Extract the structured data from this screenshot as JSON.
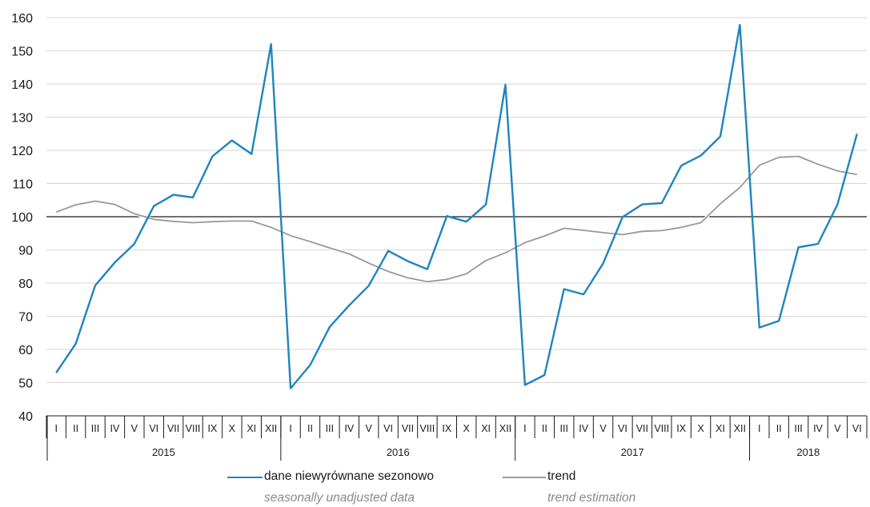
{
  "colors": {
    "unadjusted": "#1f84c0",
    "trend": "#999999",
    "grid": "#d6d6d6",
    "axis": "#1a1a1a"
  },
  "legend": {
    "unadjusted_label": "dane niewyrównane sezonowo",
    "unadjusted_sublabel": "seasonally unadjusted data",
    "trend_label": "trend",
    "trend_sublabel": "trend estimation"
  },
  "chart_data": {
    "type": "line",
    "title": "",
    "xlabel": "",
    "ylabel": "",
    "ylim": [
      40,
      160
    ],
    "yticks": [
      40,
      50,
      60,
      70,
      80,
      90,
      100,
      110,
      120,
      130,
      140,
      150,
      160
    ],
    "baseline": 100,
    "grid": true,
    "legend_position": "bottom",
    "categories": [
      "I",
      "II",
      "III",
      "IV",
      "V",
      "VI",
      "VII",
      "VIII",
      "IX",
      "X",
      "XI",
      "XII",
      "I",
      "II",
      "III",
      "IV",
      "V",
      "VI",
      "VII",
      "VIII",
      "IX",
      "X",
      "XI",
      "XII",
      "I",
      "II",
      "III",
      "IV",
      "V",
      "VI",
      "VII",
      "VIII",
      "IX",
      "X",
      "XI",
      "XII",
      "I",
      "II",
      "III",
      "IV",
      "V",
      "VI"
    ],
    "years": [
      {
        "label": "2015",
        "months": 12
      },
      {
        "label": "2016",
        "months": 12
      },
      {
        "label": "2017",
        "months": 12
      },
      {
        "label": "2018",
        "months": 6
      }
    ],
    "series": [
      {
        "name": "dane niewyrównane sezonowo",
        "values": [
          53,
          61.7,
          79.3,
          86.2,
          91.8,
          103.2,
          106.6,
          105.8,
          118.2,
          123,
          118.9,
          152,
          48.3,
          55.3,
          66.8,
          73.3,
          79.2,
          89.7,
          86.6,
          84.2,
          100.2,
          98.5,
          103.7,
          139.8,
          49.3,
          52.3,
          78.2,
          76.6,
          85.9,
          99.9,
          103.7,
          104.1,
          115.4,
          118.4,
          124.2,
          157.8,
          66.6,
          68.6,
          90.8,
          91.8,
          103.7,
          125
        ]
      },
      {
        "name": "trend",
        "values": [
          101.4,
          103.6,
          104.7,
          103.7,
          100.9,
          99.2,
          98.6,
          98.2,
          98.5,
          98.7,
          98.7,
          96.8,
          94.3,
          92.5,
          90.6,
          88.8,
          86,
          83.5,
          81.6,
          80.4,
          81.1,
          82.8,
          86.8,
          89.1,
          92.2,
          94.2,
          96.5,
          95.9,
          95.2,
          94.6,
          95.6,
          95.8,
          96.8,
          98.2,
          103.9,
          108.8,
          115.5,
          117.9,
          118.2,
          115.8,
          113.8,
          112.7
        ]
      }
    ]
  }
}
